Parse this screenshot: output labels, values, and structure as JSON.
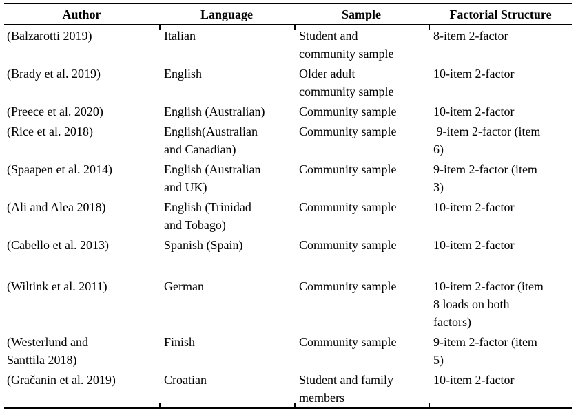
{
  "table": {
    "columns": {
      "author": "Author",
      "language": "Language",
      "sample": "Sample",
      "factorial": "Factorial Structure"
    },
    "rows": [
      {
        "author": "(Balzarotti 2019)",
        "language": "Italian",
        "sample": "Student and\ncommunity sample",
        "factorial": "8-item 2-factor"
      },
      {
        "author": "(Brady et al. 2019)",
        "language": "English",
        "sample": "Older adult\ncommunity sample",
        "factorial": "10-item 2-factor"
      },
      {
        "author": "(Preece et al. 2020)",
        "language": "English (Australian)",
        "sample": "Community sample",
        "factorial": "10-item 2-factor"
      },
      {
        "author": "(Rice et al. 2018)",
        "language": "English(Australian\nand Canadian)",
        "sample": "Community sample",
        "factorial": " 9-item 2-factor (item\n6)"
      },
      {
        "author": "(Spaapen et al. 2014)",
        "language": "English (Australian\nand UK)",
        "sample": "Community sample",
        "factorial": "9-item 2-factor (item\n3)"
      },
      {
        "author": "(Ali and Alea 2018)",
        "language": "English (Trinidad\nand Tobago)",
        "sample": "Community sample",
        "factorial": "10-item 2-factor"
      },
      {
        "author": "(Cabello et al. 2013)",
        "language": "Spanish (Spain)",
        "sample": "Community sample",
        "factorial": "10-item 2-factor"
      },
      {
        "author": "(Wiltink et al. 2011)",
        "language": "German",
        "sample": "Community sample",
        "factorial": "10-item 2-factor (item\n8 loads on both\nfactors)"
      },
      {
        "author": "(Westerlund and\nSanttila 2018)",
        "language": "Finish",
        "sample": "Community sample",
        "factorial": "9-item 2-factor (item\n5)"
      },
      {
        "author": "(Gračanin et al. 2019)",
        "language": "Croatian",
        "sample": "Student and family\nmembers",
        "factorial": "10-item 2-factor"
      }
    ]
  }
}
